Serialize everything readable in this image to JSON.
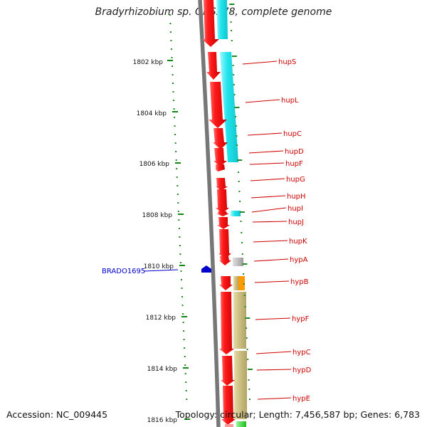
{
  "header": {
    "title": "Bradyrhizobium sp. ORS278, complete genome"
  },
  "footer": {
    "accession": "Accession: NC_009445",
    "stats": "Topology: circular; Length: 7,456,587 bp; Genes: 6,783"
  },
  "ruler": {
    "ticks": [
      "1802 kbp",
      "1804 kbp",
      "1806 kbp",
      "1808 kbp",
      "1810 kbp",
      "1812 kbp",
      "1814 kbp",
      "1816 kbp"
    ]
  },
  "highlight": {
    "label": "BRADO1695",
    "color": "#0000cc"
  },
  "gene_labels": [
    "hupS",
    "hupL",
    "hupC",
    "hupD",
    "hupF",
    "hupG",
    "hupH",
    "hupI",
    "hupJ",
    "hupK",
    "hypA",
    "hypB",
    "hypF",
    "hypC",
    "hypD",
    "hypE"
  ],
  "colors": {
    "gene_red": "#e8001a",
    "track_cyan": "#22e0e8",
    "track_olive": "#c8bc78",
    "track_orange": "#ff9900",
    "track_gray": "#aaaaaa",
    "track_green": "#22cc22",
    "ruler_green": "#118811",
    "backbone_gray": "#7a7a7a",
    "label_red": "#cc0000"
  }
}
